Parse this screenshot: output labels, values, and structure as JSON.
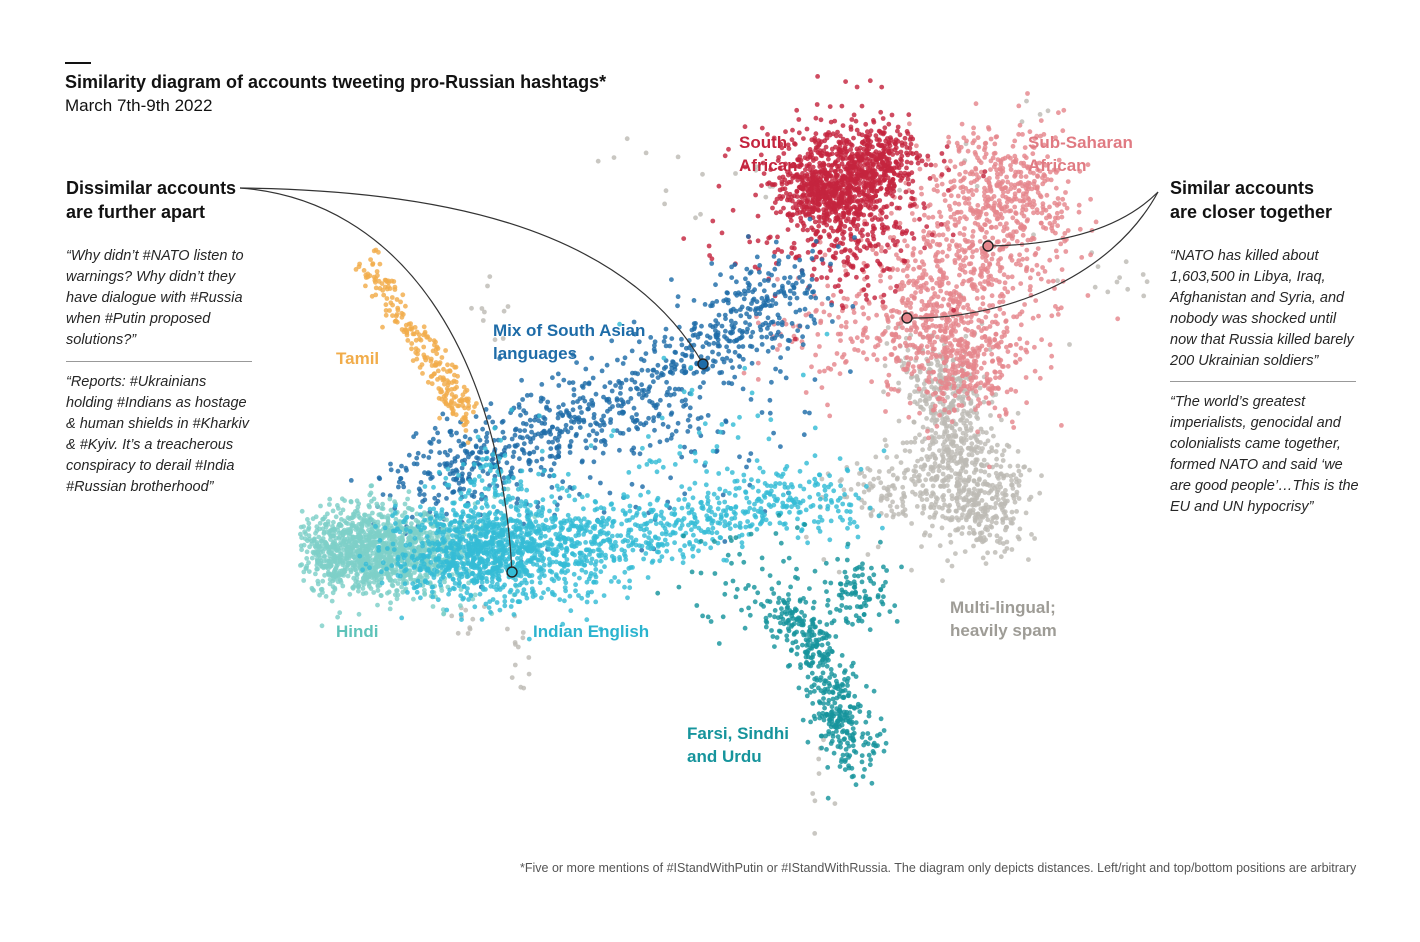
{
  "header": {
    "title": "Similarity diagram of accounts tweeting pro-Russian hashtags*",
    "subtitle": "March 7th-9th 2022"
  },
  "left_panel": {
    "callout_line1": "Dissimilar accounts",
    "callout_line2": "are further apart",
    "quote1": [
      "“Why didn’t #NATO listen to",
      "warnings? Why didn’t they",
      "have dialogue with #Russia",
      "when #Putin proposed",
      "solutions?”"
    ],
    "quote2": [
      "“Reports: #Ukrainians",
      "holding #Indians as hostage",
      "& human shields in #Kharkiv",
      "& #Kyiv. It’s a treacherous",
      "conspiracy to derail #India",
      "#Russian brotherhood”"
    ]
  },
  "right_panel": {
    "callout_line1": "Similar accounts",
    "callout_line2": "are closer together",
    "quote1": [
      "“NATO has killed about",
      "1,603,500 in Libya, Iraq,",
      "Afghanistan and Syria, and",
      "nobody was shocked until",
      "now that Russia killed barely",
      "200 Ukrainian soldiers”"
    ],
    "quote2": [
      "“The world’s greatest",
      "imperialists, genocidal and",
      "colonialists came together,",
      "formed NATO and said ‘we",
      "are good people’…This is the",
      "EU and UN hypocrisy”"
    ]
  },
  "footnote": "*Five or more mentions of #IStandWithPutin or #IStandWithRussia. The diagram only depicts distances. Left/right and top/bottom positions are arbitrary",
  "chart_data": {
    "type": "scatter",
    "title": "Similarity diagram of accounts tweeting pro-Russian hashtags*",
    "subtitle": "March 7th-9th 2022",
    "xlabel": "",
    "ylabel": "",
    "axes": "none — positions are arbitrary, only distances matter",
    "grid": false,
    "clusters": [
      {
        "name": "South African",
        "label_lines": [
          "South",
          "African"
        ],
        "color": "#c4243e"
      },
      {
        "name": "Sub-Saharan African",
        "label_lines": [
          "Sub-Saharan",
          "African"
        ],
        "color": "#e5868c"
      },
      {
        "name": "Mix of South Asian languages",
        "label_lines": [
          "Mix of South Asian",
          "languages"
        ],
        "color": "#1e6ca8"
      },
      {
        "name": "Tamil",
        "label_lines": [
          "Tamil"
        ],
        "color": "#f1ac4a"
      },
      {
        "name": "Hindi",
        "label_lines": [
          "Hindi"
        ],
        "color": "#7ed0c8"
      },
      {
        "name": "Indian English",
        "label_lines": [
          "Indian English"
        ],
        "color": "#34bcd6"
      },
      {
        "name": "Farsi, Sindhi and Urdu",
        "label_lines": [
          "Farsi, Sindhi",
          "and Urdu"
        ],
        "color": "#16949c"
      },
      {
        "name": "Multi-lingual; heavily spam",
        "label_lines": [
          "Multi-lingual;",
          "heavily spam"
        ],
        "color": "#bdbbb5"
      }
    ]
  }
}
